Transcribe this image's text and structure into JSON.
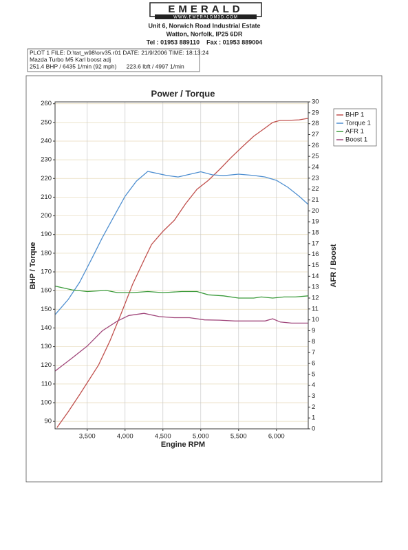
{
  "header": {
    "logo": "EMERALD",
    "website": "WWW.EMERALDM3D.COM",
    "address_1": "Unit 6, Norwich Road Industrial Estate",
    "address_2": "Watton, Norfolk, IP25 6DR",
    "contact": "Tel : 01953 889110    Fax : 01953 889004"
  },
  "info": {
    "line_1": "PLOT 1 FILE: D:\\tat_w98\\orv35.r01  DATE: 21/9/2006  TIME: 18:13:24",
    "line_2": "Mazda Turbo M5 Karl boost adj",
    "line_3": "251.4 BHP / 6435 1/min (92 mph)      223.6 lbft / 4997 1/min"
  },
  "chart_data": {
    "type": "line",
    "title": "Power / Torque",
    "x_label": "Engine RPM",
    "y_label": "BHP / Torque",
    "y2_label": "AFR / Boost",
    "xlim": [
      3075,
      6420
    ],
    "xticks": [
      {
        "value": 3500,
        "label": "3,500"
      },
      {
        "value": 4000,
        "label": "4,000"
      },
      {
        "value": 4500,
        "label": "4,500"
      },
      {
        "value": 5000,
        "label": "5,000"
      },
      {
        "value": 5500,
        "label": "5,500"
      },
      {
        "value": 6000,
        "label": "6,000"
      }
    ],
    "ylim": [
      86,
      261
    ],
    "yticks": [
      90,
      100,
      110,
      120,
      130,
      140,
      150,
      160,
      170,
      180,
      190,
      200,
      210,
      220,
      230,
      240,
      250,
      260
    ],
    "y2lim": [
      0,
      30
    ],
    "y2ticks": [
      0,
      1,
      2,
      3,
      4,
      5,
      6,
      7,
      8,
      9,
      10,
      11,
      12,
      13,
      14,
      15,
      16,
      17,
      18,
      19,
      20,
      21,
      22,
      23,
      24,
      25,
      26,
      27,
      28,
      29,
      30
    ],
    "grid": true,
    "legend": "top-right",
    "series": [
      {
        "name": "BHP 1",
        "color": "#c0504d",
        "x": [
          3100,
          3250,
          3400,
          3500,
          3650,
          3800,
          3950,
          4100,
          4250,
          4350,
          4500,
          4650,
          4800,
          4950,
          5100,
          5250,
          5400,
          5550,
          5700,
          5850,
          5950,
          6050,
          6150,
          6300,
          6420
        ],
        "values": [
          86.7,
          95.2,
          104.4,
          110.7,
          120.2,
          133.1,
          147.9,
          163.4,
          176.3,
          184.7,
          191.7,
          197.6,
          206.5,
          214.2,
          219.0,
          224.9,
          231.2,
          237.0,
          242.6,
          247.0,
          250.0,
          251.1,
          251.1,
          251.4,
          252.2
        ]
      },
      {
        "name": "Torque 1",
        "color": "#4f8fd0",
        "x": [
          3075,
          3250,
          3400,
          3550,
          3700,
          3850,
          4000,
          4150,
          4300,
          4550,
          4700,
          5000,
          5150,
          5300,
          5500,
          5700,
          5850,
          6000,
          6150,
          6300,
          6420
        ],
        "values": [
          147.1,
          155.3,
          164.5,
          176.3,
          188.4,
          199.5,
          210.5,
          218.6,
          223.8,
          221.6,
          220.8,
          223.6,
          222.0,
          221.5,
          222.3,
          221.6,
          220.8,
          219.0,
          215.3,
          210.5,
          206.1
        ]
      },
      {
        "name": "AFR 1",
        "color": "#3a9a3a",
        "axis": "y2",
        "x": [
          3075,
          3300,
          3500,
          3750,
          3900,
          4100,
          4300,
          4500,
          4750,
          4950,
          5100,
          5300,
          5500,
          5700,
          5800,
          5950,
          6100,
          6250,
          6420
        ],
        "values": [
          13.1,
          12.75,
          12.6,
          12.7,
          12.5,
          12.5,
          12.6,
          12.5,
          12.6,
          12.6,
          12.3,
          12.2,
          12.0,
          12.0,
          12.1,
          12.0,
          12.1,
          12.1,
          12.2
        ]
      },
      {
        "name": "Boost 1",
        "color": "#a0467a",
        "axis": "y2",
        "x": [
          3075,
          3300,
          3500,
          3700,
          3900,
          4050,
          4250,
          4450,
          4650,
          4850,
          5050,
          5250,
          5450,
          5650,
          5850,
          5950,
          6050,
          6200,
          6420
        ],
        "values": [
          5.3,
          6.5,
          7.6,
          9.0,
          9.9,
          10.4,
          10.6,
          10.3,
          10.2,
          10.2,
          10.0,
          9.97,
          9.9,
          9.9,
          9.9,
          10.1,
          9.8,
          9.7,
          9.7
        ]
      }
    ]
  }
}
